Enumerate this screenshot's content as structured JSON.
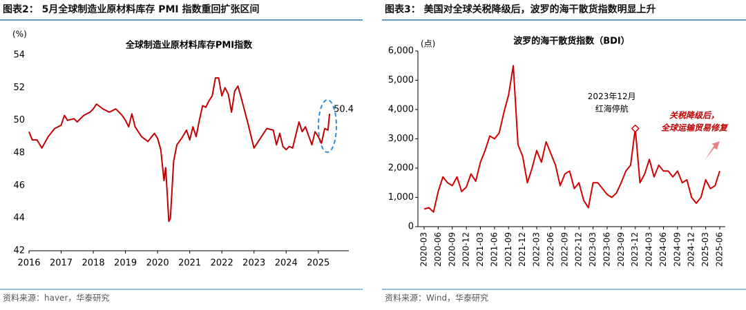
{
  "chart_data": [
    {
      "type": "line",
      "header": "图表2：  5月全球制造业原材料库存 PMI 指数重回扩张区间",
      "title": "全球制造业原材料库存PMI指数",
      "y_unit": "(%)",
      "source": "资料来源：haver，华泰研究",
      "color": "#c00000",
      "x": [
        2016.0,
        2016.1,
        2016.25,
        2016.4,
        2016.6,
        2016.8,
        2017.0,
        2017.1,
        2017.2,
        2017.4,
        2017.5,
        2017.7,
        2017.9,
        2018.0,
        2018.1,
        2018.3,
        2018.5,
        2018.7,
        2018.9,
        2019.0,
        2019.1,
        2019.2,
        2019.3,
        2019.5,
        2019.7,
        2019.9,
        2020.0,
        2020.1,
        2020.2,
        2020.25,
        2020.3,
        2020.35,
        2020.4,
        2020.5,
        2020.6,
        2020.75,
        2020.9,
        2021.0,
        2021.1,
        2021.2,
        2021.3,
        2021.4,
        2021.5,
        2021.6,
        2021.7,
        2021.8,
        2021.9,
        2022.0,
        2022.1,
        2022.2,
        2022.3,
        2022.4,
        2022.5,
        2022.6,
        2022.8,
        2023.0,
        2023.2,
        2023.4,
        2023.6,
        2023.7,
        2023.8,
        2023.9,
        2024.0,
        2024.1,
        2024.2,
        2024.4,
        2024.5,
        2024.6,
        2024.8,
        2024.9,
        2025.0,
        2025.1,
        2025.2,
        2025.3,
        2025.35
      ],
      "values": [
        49.3,
        48.8,
        48.8,
        48.3,
        49.0,
        49.5,
        49.7,
        50.3,
        50.0,
        50.1,
        49.9,
        50.3,
        50.5,
        50.7,
        51.0,
        50.7,
        50.5,
        50.7,
        50.3,
        50.0,
        49.6,
        50.4,
        49.6,
        49.0,
        48.7,
        49.2,
        48.9,
        48.2,
        46.3,
        47.1,
        45.5,
        43.8,
        44.0,
        47.5,
        48.5,
        48.9,
        49.4,
        48.8,
        49.6,
        49.0,
        50.0,
        50.9,
        50.8,
        51.2,
        51.5,
        52.6,
        52.6,
        51.5,
        52.0,
        51.6,
        50.5,
        51.8,
        52.1,
        51.4,
        49.9,
        48.3,
        48.9,
        49.5,
        49.4,
        48.5,
        49.2,
        48.4,
        48.2,
        48.4,
        48.3,
        49.9,
        49.3,
        49.6,
        48.5,
        49.3,
        49.0,
        48.6,
        49.5,
        49.4,
        50.4
      ],
      "xlim": [
        2016,
        2025.95
      ],
      "xticks": [
        2016,
        2017,
        2018,
        2019,
        2020,
        2021,
        2022,
        2023,
        2024,
        2025
      ],
      "ylim": [
        42,
        54
      ],
      "yticks": [
        42,
        44,
        46,
        48,
        50,
        52,
        54
      ]
    },
    {
      "type": "line",
      "header": "图表3：  美国对全球关税降级后，波罗的海干散货指数明显上升",
      "title": "波罗的海干散货指数（BDI）",
      "y_unit": "(点)",
      "source": "资料来源：Wind，华泰研究",
      "color": "#d00000",
      "categories": [
        "2020-03",
        null,
        null,
        "2020-06",
        null,
        null,
        "2020-09",
        null,
        null,
        "2020-12",
        null,
        null,
        "2021-03",
        null,
        null,
        "2021-06",
        null,
        null,
        "2021-09",
        null,
        null,
        "2021-12",
        null,
        null,
        "2022-03",
        null,
        null,
        "2022-06",
        null,
        null,
        "2022-09",
        null,
        null,
        "2022-12",
        null,
        null,
        "2023-03",
        null,
        null,
        "2023-06",
        null,
        null,
        "2023-09",
        null,
        null,
        "2023-12",
        null,
        null,
        "2024-03",
        null,
        null,
        "2024-06",
        null,
        null,
        "2024-09",
        null,
        null,
        "2024-12",
        null,
        null,
        "2025-03",
        null,
        null,
        "2025-06"
      ],
      "values": [
        600,
        650,
        500,
        1200,
        1700,
        1500,
        1400,
        1700,
        1200,
        1350,
        1800,
        1550,
        2200,
        2600,
        3100,
        3000,
        3200,
        3900,
        4500,
        5500,
        2800,
        2400,
        1500,
        2000,
        2600,
        2200,
        2900,
        2500,
        2100,
        1400,
        1800,
        1900,
        1300,
        1500,
        900,
        650,
        1500,
        1500,
        1300,
        1100,
        1000,
        1150,
        1500,
        1900,
        2100,
        3350,
        1500,
        1800,
        2300,
        1700,
        2100,
        1900,
        1900,
        1700,
        1900,
        1500,
        1600,
        1000,
        800,
        1000,
        1600,
        1300,
        1400,
        1900
      ],
      "ylim": [
        0,
        6000
      ],
      "yticks": [
        0,
        {
          "value": 1000,
          "label": "1,000"
        },
        {
          "value": 2000,
          "label": "2,000"
        },
        {
          "value": 3000,
          "label": "3,000"
        },
        {
          "value": 4000,
          "label": "4,000"
        },
        {
          "value": 5000,
          "label": "5,000"
        },
        {
          "value": 6000,
          "label": "6,000"
        }
      ],
      "annotations": [
        {
          "x": "2023-12",
          "lines": [
            "2023年12月",
            "红海停航"
          ]
        },
        {
          "lines": [
            "关税降级后，",
            "全球运输贸易修复"
          ]
        }
      ]
    }
  ]
}
